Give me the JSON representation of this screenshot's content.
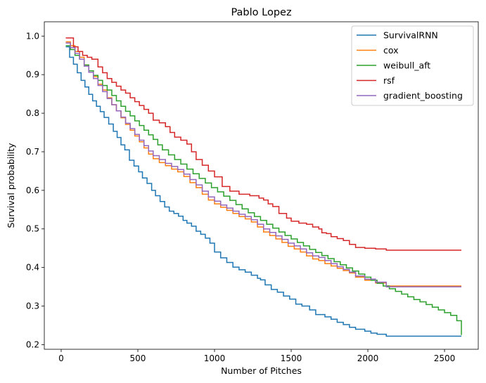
{
  "chart_data": {
    "type": "line",
    "step": true,
    "title": "Pablo Lopez",
    "xlabel": "Number of Pitches",
    "ylabel": "Survival probability",
    "xlim": [
      -110,
      2720
    ],
    "ylim": [
      0.188,
      1.037
    ],
    "xticks": [
      0,
      500,
      1000,
      1500,
      2000,
      2500
    ],
    "yticks": [
      0.2,
      0.3,
      0.4,
      0.5,
      0.6,
      0.7,
      0.8,
      0.9,
      1.0
    ],
    "xtick_labels": [
      "0",
      "500",
      "1000",
      "1500",
      "2000",
      "2500"
    ],
    "ytick_labels": [
      "0.2",
      "0.3",
      "0.4",
      "0.5",
      "0.6",
      "0.7",
      "0.8",
      "0.9",
      "1.0"
    ],
    "grid": false,
    "legend_position": "upper-right",
    "series": [
      {
        "name": "SurvivalRNN",
        "color": "#1f77b4",
        "x": [
          30,
          55,
          80,
          105,
          130,
          155,
          180,
          205,
          230,
          255,
          280,
          310,
          340,
          365,
          390,
          415,
          445,
          475,
          505,
          530,
          560,
          590,
          615,
          645,
          675,
          705,
          735,
          765,
          795,
          820,
          850,
          880,
          910,
          940,
          970,
          1000,
          1040,
          1080,
          1120,
          1160,
          1200,
          1240,
          1280,
          1300,
          1330,
          1370,
          1410,
          1450,
          1490,
          1530,
          1570,
          1620,
          1660,
          1720,
          1760,
          1800,
          1840,
          1880,
          1920,
          1980,
          2020,
          2060,
          2120,
          2300,
          2610
        ],
        "y": [
          0.972,
          0.945,
          0.927,
          0.905,
          0.885,
          0.868,
          0.849,
          0.832,
          0.818,
          0.804,
          0.789,
          0.772,
          0.753,
          0.737,
          0.718,
          0.705,
          0.678,
          0.663,
          0.648,
          0.632,
          0.618,
          0.6,
          0.586,
          0.571,
          0.557,
          0.546,
          0.54,
          0.533,
          0.522,
          0.515,
          0.507,
          0.494,
          0.486,
          0.476,
          0.463,
          0.44,
          0.425,
          0.413,
          0.401,
          0.394,
          0.388,
          0.38,
          0.372,
          0.368,
          0.355,
          0.343,
          0.336,
          0.326,
          0.318,
          0.305,
          0.3,
          0.29,
          0.278,
          0.272,
          0.266,
          0.258,
          0.252,
          0.245,
          0.24,
          0.235,
          0.23,
          0.227,
          0.222,
          0.222,
          0.222
        ]
      },
      {
        "name": "cox",
        "color": "#ff7f0e",
        "x": [
          30,
          60,
          90,
          120,
          150,
          180,
          210,
          240,
          270,
          300,
          330,
          360,
          390,
          420,
          450,
          480,
          510,
          540,
          570,
          600,
          640,
          680,
          720,
          760,
          800,
          840,
          880,
          920,
          960,
          1000,
          1040,
          1080,
          1120,
          1160,
          1200,
          1240,
          1280,
          1320,
          1360,
          1400,
          1440,
          1480,
          1520,
          1560,
          1600,
          1640,
          1680,
          1720,
          1760,
          1800,
          1840,
          1880,
          1920,
          1980,
          2050,
          2120,
          2610
        ],
        "y": [
          0.985,
          0.975,
          0.96,
          0.945,
          0.925,
          0.91,
          0.895,
          0.875,
          0.86,
          0.84,
          0.822,
          0.806,
          0.788,
          0.771,
          0.756,
          0.741,
          0.726,
          0.71,
          0.694,
          0.682,
          0.672,
          0.664,
          0.655,
          0.648,
          0.636,
          0.62,
          0.607,
          0.59,
          0.575,
          0.565,
          0.556,
          0.548,
          0.54,
          0.532,
          0.526,
          0.518,
          0.505,
          0.492,
          0.483,
          0.474,
          0.465,
          0.455,
          0.448,
          0.44,
          0.43,
          0.422,
          0.418,
          0.41,
          0.404,
          0.398,
          0.392,
          0.386,
          0.375,
          0.367,
          0.36,
          0.352,
          0.352
        ]
      },
      {
        "name": "weibull_aft",
        "color": "#2ca02c",
        "x": [
          30,
          60,
          90,
          120,
          150,
          180,
          210,
          240,
          270,
          300,
          330,
          360,
          390,
          420,
          450,
          480,
          510,
          540,
          570,
          600,
          630,
          660,
          700,
          740,
          780,
          820,
          860,
          900,
          940,
          980,
          1020,
          1060,
          1100,
          1140,
          1180,
          1220,
          1260,
          1300,
          1340,
          1380,
          1420,
          1460,
          1500,
          1540,
          1580,
          1620,
          1660,
          1700,
          1740,
          1780,
          1820,
          1860,
          1900,
          1940,
          1980,
          2020,
          2060,
          2100,
          2140,
          2180,
          2220,
          2260,
          2300,
          2340,
          2380,
          2420,
          2460,
          2500,
          2540,
          2580,
          2610
        ],
        "y": [
          0.975,
          0.965,
          0.95,
          0.94,
          0.925,
          0.91,
          0.898,
          0.885,
          0.872,
          0.86,
          0.846,
          0.832,
          0.818,
          0.805,
          0.793,
          0.78,
          0.768,
          0.756,
          0.744,
          0.732,
          0.718,
          0.705,
          0.692,
          0.68,
          0.668,
          0.655,
          0.643,
          0.631,
          0.619,
          0.607,
          0.596,
          0.585,
          0.574,
          0.563,
          0.552,
          0.542,
          0.532,
          0.522,
          0.512,
          0.502,
          0.492,
          0.483,
          0.474,
          0.465,
          0.456,
          0.447,
          0.439,
          0.431,
          0.423,
          0.415,
          0.407,
          0.399,
          0.391,
          0.383,
          0.375,
          0.367,
          0.359,
          0.352,
          0.345,
          0.338,
          0.331,
          0.324,
          0.317,
          0.311,
          0.304,
          0.297,
          0.29,
          0.283,
          0.276,
          0.262,
          0.225
        ]
      },
      {
        "name": "rsf",
        "color": "#d62728",
        "x": [
          30,
          80,
          110,
          140,
          170,
          200,
          240,
          270,
          300,
          330,
          360,
          390,
          420,
          450,
          480,
          510,
          540,
          570,
          600,
          640,
          680,
          710,
          740,
          780,
          820,
          850,
          880,
          920,
          960,
          1000,
          1050,
          1100,
          1160,
          1230,
          1290,
          1320,
          1350,
          1380,
          1420,
          1470,
          1500,
          1550,
          1600,
          1640,
          1680,
          1700,
          1730,
          1760,
          1800,
          1840,
          1880,
          1920,
          1980,
          2050,
          2120,
          2610
        ],
        "y": [
          0.995,
          0.972,
          0.96,
          0.95,
          0.945,
          0.94,
          0.92,
          0.905,
          0.89,
          0.88,
          0.87,
          0.86,
          0.852,
          0.84,
          0.83,
          0.82,
          0.81,
          0.8,
          0.782,
          0.775,
          0.765,
          0.75,
          0.738,
          0.73,
          0.72,
          0.7,
          0.68,
          0.665,
          0.65,
          0.635,
          0.61,
          0.598,
          0.59,
          0.586,
          0.58,
          0.575,
          0.565,
          0.558,
          0.54,
          0.528,
          0.52,
          0.515,
          0.512,
          0.505,
          0.5,
          0.49,
          0.488,
          0.48,
          0.475,
          0.47,
          0.46,
          0.452,
          0.45,
          0.448,
          0.445,
          0.445
        ]
      },
      {
        "name": "gradient_boosting",
        "color": "#9467bd",
        "x": [
          30,
          60,
          90,
          120,
          150,
          180,
          210,
          240,
          270,
          300,
          330,
          360,
          390,
          420,
          450,
          480,
          510,
          540,
          570,
          600,
          640,
          680,
          720,
          760,
          800,
          840,
          880,
          920,
          960,
          1000,
          1040,
          1080,
          1120,
          1160,
          1200,
          1240,
          1280,
          1320,
          1360,
          1400,
          1440,
          1480,
          1520,
          1560,
          1600,
          1640,
          1680,
          1720,
          1760,
          1800,
          1840,
          1880,
          1920,
          1980,
          2050,
          2120,
          2610
        ],
        "y": [
          0.982,
          0.97,
          0.955,
          0.94,
          0.922,
          0.906,
          0.89,
          0.872,
          0.856,
          0.838,
          0.822,
          0.806,
          0.79,
          0.774,
          0.76,
          0.745,
          0.73,
          0.716,
          0.702,
          0.69,
          0.68,
          0.67,
          0.662,
          0.654,
          0.642,
          0.628,
          0.614,
          0.598,
          0.583,
          0.572,
          0.562,
          0.554,
          0.546,
          0.538,
          0.532,
          0.524,
          0.512,
          0.5,
          0.491,
          0.482,
          0.473,
          0.463,
          0.456,
          0.448,
          0.438,
          0.43,
          0.426,
          0.418,
          0.41,
          0.402,
          0.395,
          0.388,
          0.378,
          0.37,
          0.362,
          0.35,
          0.35
        ]
      }
    ]
  }
}
